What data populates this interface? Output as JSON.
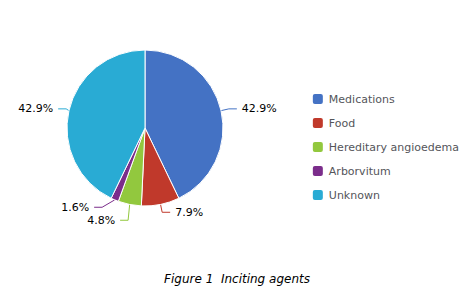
{
  "chart_data": {
    "type": "pie",
    "title": "Figure 1  Inciting agents",
    "categories": [
      "Medications",
      "Food",
      "Hereditary angioedema",
      "Arborvitum",
      "Unknown"
    ],
    "values": [
      42.9,
      7.9,
      4.8,
      1.6,
      42.9
    ],
    "value_labels": [
      "42.9%",
      "7.9%",
      "4.8%",
      "1.6%",
      "42.9%"
    ],
    "colors": [
      "#4472C4",
      "#C0392B",
      "#92C83E",
      "#7B2D8B",
      "#29ABD4"
    ],
    "data_labels": true,
    "legend": "right"
  }
}
